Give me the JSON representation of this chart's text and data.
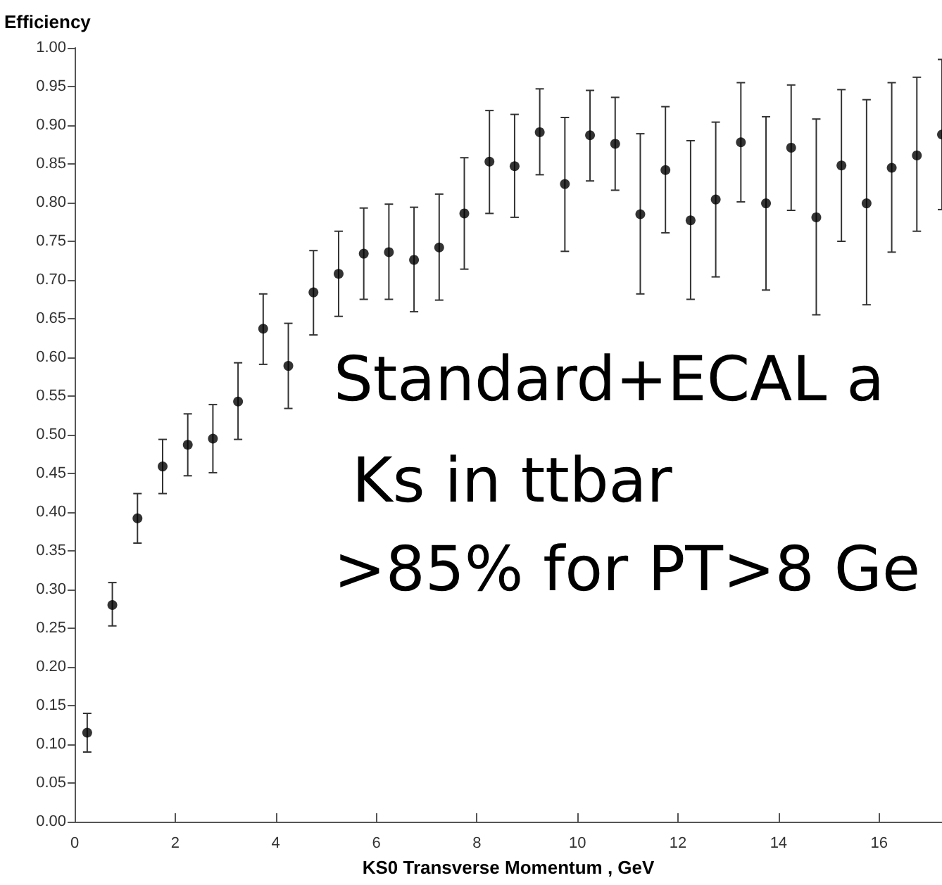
{
  "chart_data": {
    "type": "scatter",
    "xlabel": "KS0 Transverse Momentum , GeV",
    "ylabel": "Efficiency",
    "x": [
      0.25,
      0.75,
      1.25,
      1.75,
      2.25,
      2.75,
      3.25,
      3.75,
      4.25,
      4.75,
      5.25,
      5.75,
      6.25,
      6.75,
      7.25,
      7.75,
      8.25,
      8.75,
      9.25,
      9.75,
      10.25,
      10.75,
      11.25,
      11.75,
      12.25,
      12.75,
      13.25,
      13.75,
      14.25,
      14.75,
      15.25,
      15.75,
      16.25,
      16.75,
      17.25
    ],
    "series": [
      {
        "color": "#000000",
        "values": [
          0.115,
          0.28,
          0.392,
          0.459,
          0.487,
          0.495,
          0.543,
          0.637,
          0.589,
          0.684,
          0.708,
          0.734,
          0.736,
          0.726,
          0.742,
          0.786,
          0.853,
          0.847,
          0.891,
          0.824,
          0.887,
          0.876,
          0.785,
          0.842,
          0.777,
          0.804,
          0.878,
          0.799,
          0.871,
          0.781,
          0.848,
          0.799,
          0.845,
          0.861,
          0.888
        ],
        "errors": [
          [
            0.09,
            0.14
          ],
          [
            0.253,
            0.309
          ],
          [
            0.36,
            0.424
          ],
          [
            0.424,
            0.494
          ],
          [
            0.447,
            0.527
          ],
          [
            0.451,
            0.539
          ],
          [
            0.494,
            0.593
          ],
          [
            0.591,
            0.682
          ],
          [
            0.534,
            0.644
          ],
          [
            0.629,
            0.738
          ],
          [
            0.653,
            0.763
          ],
          [
            0.675,
            0.793
          ],
          [
            0.675,
            0.798
          ],
          [
            0.659,
            0.794
          ],
          [
            0.674,
            0.811
          ],
          [
            0.714,
            0.858
          ],
          [
            0.786,
            0.919
          ],
          [
            0.781,
            0.914
          ],
          [
            0.836,
            0.947
          ],
          [
            0.737,
            0.91
          ],
          [
            0.828,
            0.945
          ],
          [
            0.816,
            0.936
          ],
          [
            0.682,
            0.889
          ],
          [
            0.761,
            0.924
          ],
          [
            0.675,
            0.88
          ],
          [
            0.704,
            0.904
          ],
          [
            0.801,
            0.955
          ],
          [
            0.687,
            0.911
          ],
          [
            0.79,
            0.952
          ],
          [
            0.655,
            0.908
          ],
          [
            0.75,
            0.946
          ],
          [
            0.668,
            0.933
          ],
          [
            0.736,
            0.955
          ],
          [
            0.763,
            0.962
          ],
          [
            0.791,
            0.985
          ]
        ]
      }
    ],
    "xlim": [
      0,
      17.25
    ],
    "xticks": [
      0,
      2,
      4,
      6,
      8,
      10,
      12,
      14,
      16
    ],
    "ylim": [
      0,
      1
    ],
    "yticks": [
      {
        "value": 0,
        "label": "0.00"
      },
      {
        "value": 0.05,
        "label": "0.05"
      },
      {
        "value": 0.1,
        "label": "0.10"
      },
      {
        "value": 0.15,
        "label": "0.15"
      },
      {
        "value": 0.2,
        "label": "0.20"
      },
      {
        "value": 0.25,
        "label": "0.25"
      },
      {
        "value": 0.3,
        "label": "0.30"
      },
      {
        "value": 0.35,
        "label": "0.35"
      },
      {
        "value": 0.4,
        "label": "0.40"
      },
      {
        "value": 0.45,
        "label": "0.45"
      },
      {
        "value": 0.5,
        "label": "0.50"
      },
      {
        "value": 0.55,
        "label": "0.55"
      },
      {
        "value": 0.6,
        "label": "0.60"
      },
      {
        "value": 0.65,
        "label": "0.65"
      },
      {
        "value": 0.7,
        "label": "0.70"
      },
      {
        "value": 0.75,
        "label": "0.75"
      },
      {
        "value": 0.8,
        "label": "0.80"
      },
      {
        "value": 0.85,
        "label": "0.85"
      },
      {
        "value": 0.9,
        "label": "0.90"
      },
      {
        "value": 0.95,
        "label": "0.95"
      },
      {
        "value": 1,
        "label": "1.00"
      }
    ],
    "grid": false,
    "marker": "circle",
    "annotations": [
      "Standard+ECAL a",
      "Ks in ttbar",
      ">85% for PT>8 Ge"
    ]
  }
}
